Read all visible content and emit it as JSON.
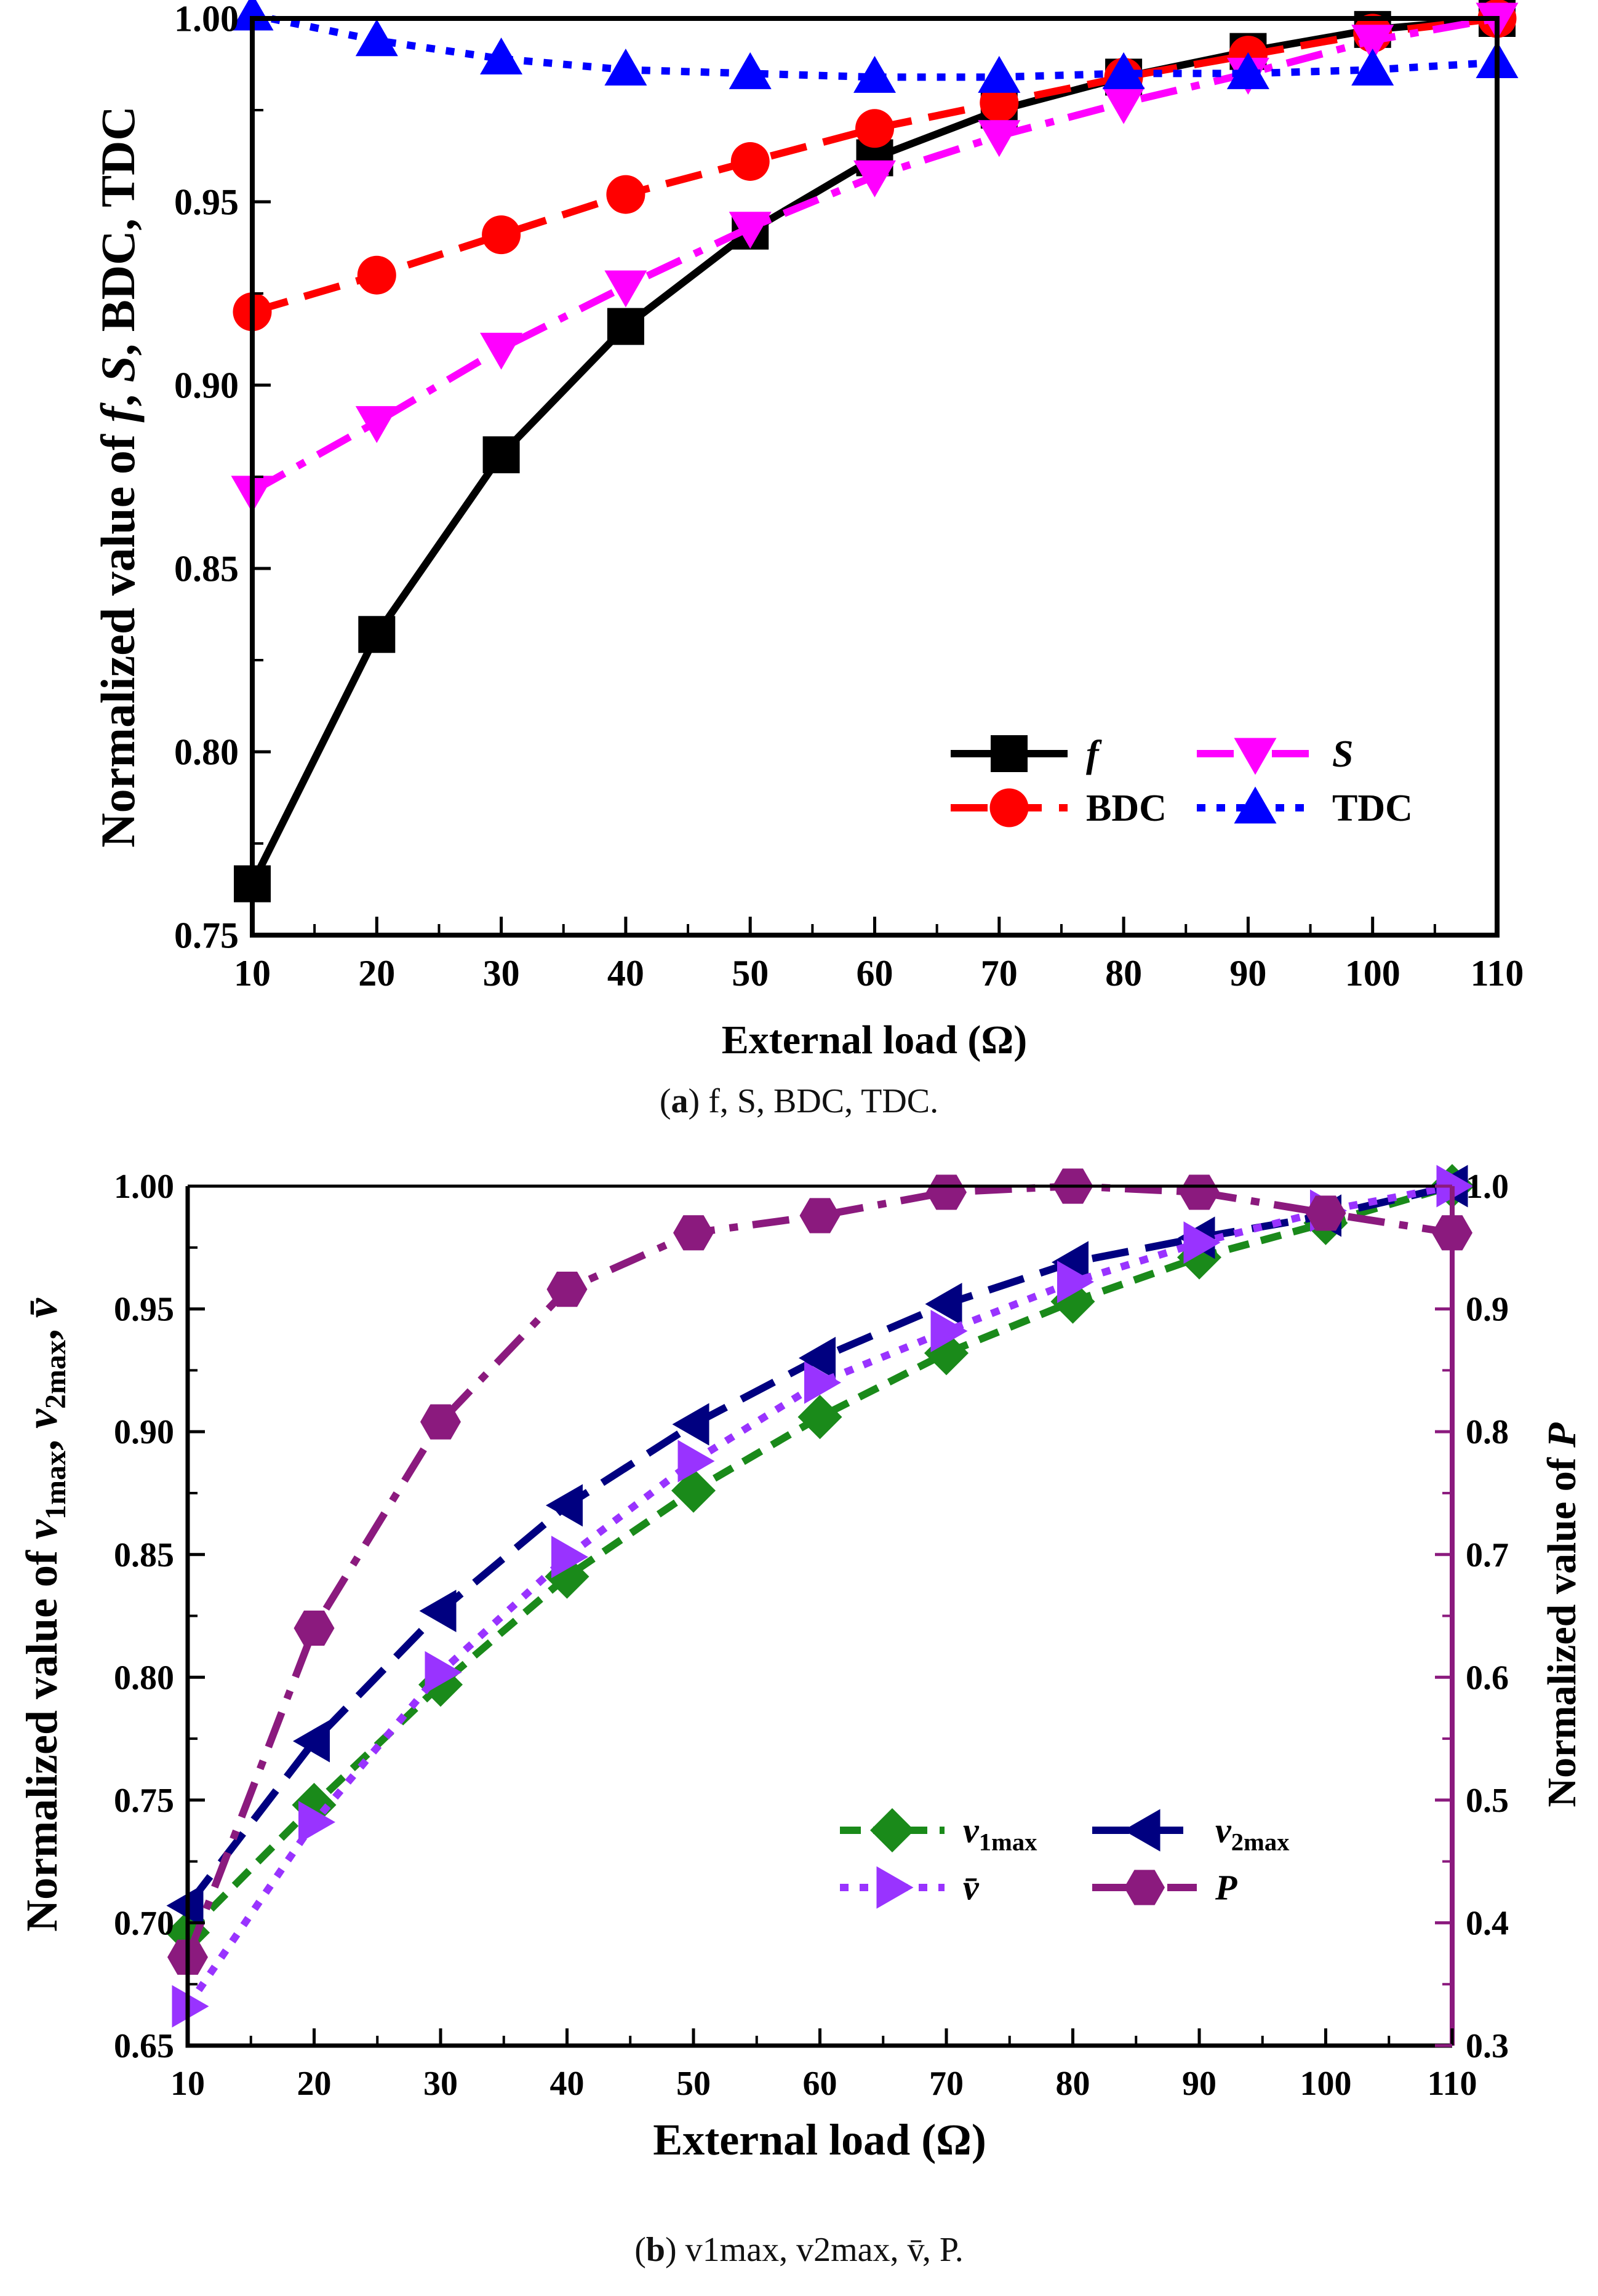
{
  "captions": {
    "a": {
      "letter": "a",
      "text": "f, S, BDC, TDC."
    },
    "b": {
      "letter": "b",
      "text": "v1max, v2max, v̄, P."
    }
  },
  "chart_data": [
    {
      "id": "a",
      "type": "line",
      "xlabel": "External load (Ω)",
      "ylabel": "Normalized value of f, S, BDC, TDC",
      "xlim": [
        10,
        110
      ],
      "ylim": [
        0.75,
        1.0
      ],
      "xticks": [
        "10",
        "20",
        "30",
        "40",
        "50",
        "60",
        "70",
        "80",
        "90",
        "100",
        "110"
      ],
      "yticks": [
        "0.75",
        "0.80",
        "0.85",
        "0.90",
        "0.95",
        "1.00"
      ],
      "x": [
        10,
        20,
        30,
        40,
        50,
        60,
        70,
        80,
        90,
        100,
        110
      ],
      "series": [
        {
          "name": "f",
          "color": "#000000",
          "marker": "square",
          "dash": "solid",
          "values": [
            0.764,
            0.832,
            0.881,
            0.916,
            0.942,
            0.962,
            0.975,
            0.984,
            0.991,
            0.997,
            1.0
          ]
        },
        {
          "name": "BDC",
          "color": "#ff0000",
          "marker": "circle",
          "dash": "dash",
          "values": [
            0.92,
            0.93,
            0.941,
            0.952,
            0.961,
            0.97,
            0.977,
            0.984,
            0.99,
            0.996,
            1.0
          ]
        },
        {
          "name": "S",
          "color": "#ff00ff",
          "marker": "triangle-down",
          "dash": "dashdot",
          "values": [
            0.871,
            0.89,
            0.91,
            0.927,
            0.943,
            0.957,
            0.968,
            0.977,
            0.985,
            0.994,
            1.0
          ]
        },
        {
          "name": "TDC",
          "color": "#0000ff",
          "marker": "triangle-up",
          "dash": "dot",
          "values": [
            1.001,
            0.994,
            0.989,
            0.986,
            0.985,
            0.984,
            0.984,
            0.985,
            0.985,
            0.986,
            0.988
          ]
        }
      ],
      "legend": "bottom-right"
    },
    {
      "id": "b",
      "type": "line",
      "xlabel": "External load (Ω)",
      "ylabel": "Normalized value of v1max, v2max, v̄",
      "y2label": "Normalized value of P",
      "xlim": [
        10,
        110
      ],
      "ylim": [
        0.65,
        1.0
      ],
      "y2lim": [
        0.3,
        1.0
      ],
      "xticks": [
        "10",
        "20",
        "30",
        "40",
        "50",
        "60",
        "70",
        "80",
        "90",
        "100",
        "110"
      ],
      "yticks": [
        "0.65",
        "0.70",
        "0.75",
        "0.80",
        "0.85",
        "0.90",
        "0.95",
        "1.00"
      ],
      "y2ticks": [
        "0.3",
        "0.4",
        "0.5",
        "0.6",
        "0.7",
        "0.8",
        "0.9",
        "1.0"
      ],
      "x": [
        10,
        20,
        30,
        40,
        50,
        60,
        70,
        80,
        90,
        100,
        110
      ],
      "series": [
        {
          "name": "v1max",
          "color": "#1a8a1a",
          "marker": "diamond",
          "dash": "dash-short",
          "axis": "left",
          "values": [
            0.696,
            0.748,
            0.797,
            0.841,
            0.876,
            0.906,
            0.932,
            0.953,
            0.971,
            0.985,
            1.0
          ]
        },
        {
          "name": "v2max",
          "color": "#000080",
          "marker": "triangle-left",
          "dash": "dash",
          "axis": "left",
          "values": [
            0.707,
            0.774,
            0.827,
            0.87,
            0.903,
            0.93,
            0.952,
            0.969,
            0.979,
            0.988,
            1.0
          ]
        },
        {
          "name": "v̄",
          "color": "#9933ff",
          "marker": "triangle-right",
          "dash": "dot",
          "axis": "left",
          "values": [
            0.666,
            0.741,
            0.802,
            0.849,
            0.888,
            0.92,
            0.941,
            0.961,
            0.977,
            0.99,
            1.0
          ]
        },
        {
          "name": "P",
          "color": "#8b1a7e",
          "marker": "hexagon",
          "dash": "dashdot",
          "axis": "right",
          "values": [
            0.372,
            0.64,
            0.808,
            0.916,
            0.962,
            0.976,
            0.995,
            1.0,
            0.995,
            0.978,
            0.962
          ]
        }
      ],
      "legend": "bottom-right"
    }
  ]
}
